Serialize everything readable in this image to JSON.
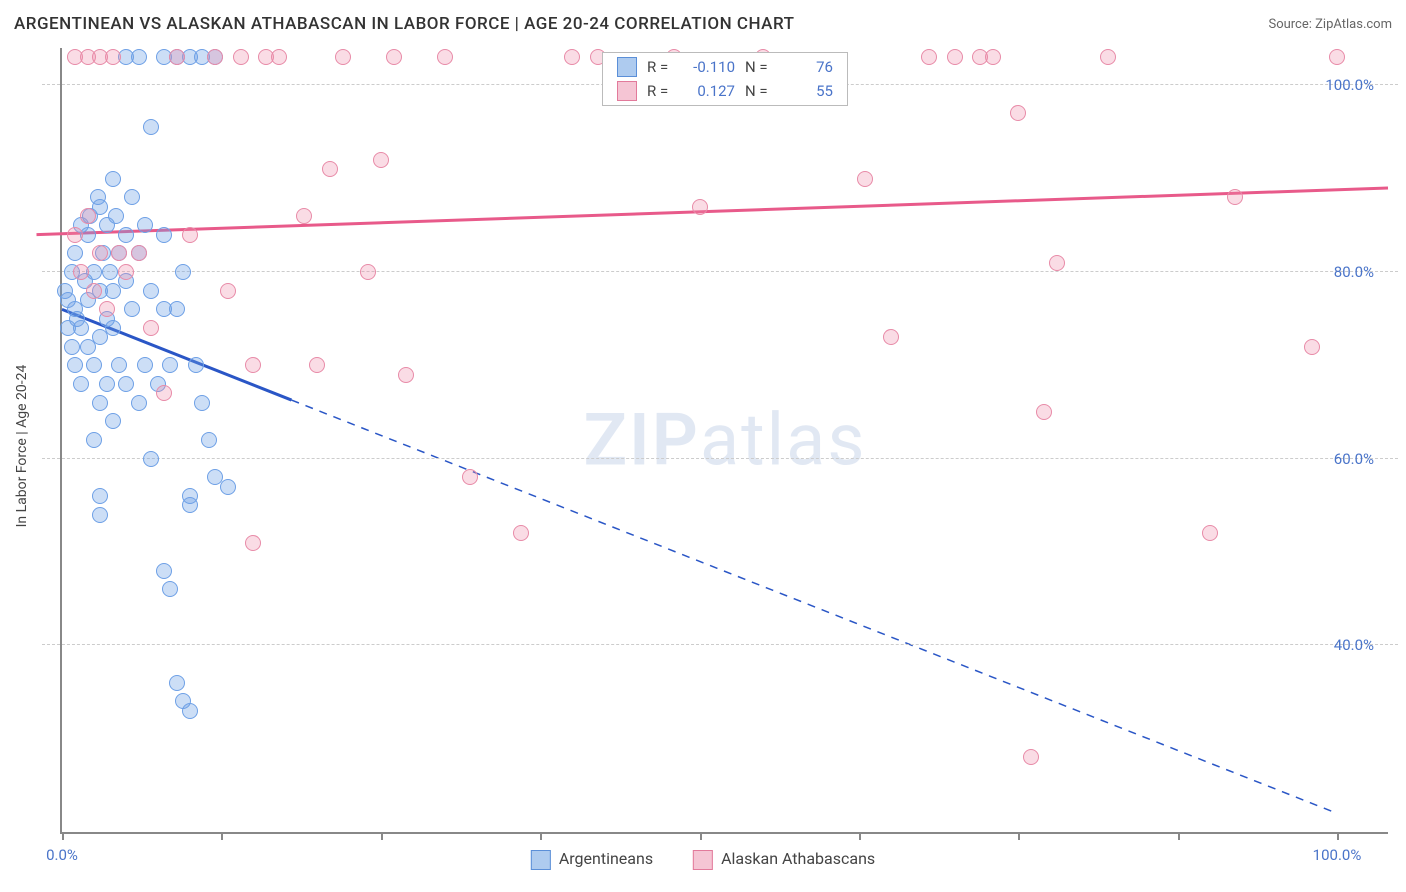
{
  "header": {
    "title": "ARGENTINEAN VS ALASKAN ATHABASCAN IN LABOR FORCE | AGE 20-24 CORRELATION CHART",
    "source_label": "Source: ",
    "source_name": "ZipAtlas.com"
  },
  "chart": {
    "type": "scatter-correlation",
    "y_axis_title": "In Labor Force | Age 20-24",
    "background_color": "#ffffff",
    "grid_color": "#cccccc",
    "axis_color": "#888888",
    "xlim": [
      0,
      104
    ],
    "ylim": [
      20,
      104
    ],
    "y_ticks": [
      40,
      60,
      80,
      100
    ],
    "y_tick_labels": [
      "40.0%",
      "60.0%",
      "80.0%",
      "100.0%"
    ],
    "y_tick_color": "#4a74c9",
    "x_ticks_minor": [
      0,
      12.5,
      25,
      37.5,
      50,
      62.5,
      75,
      87.5,
      100
    ],
    "x_tick_labels": [
      {
        "x": 0,
        "text": "0.0%"
      },
      {
        "x": 100,
        "text": "100.0%"
      }
    ],
    "x_tick_color": "#4a74c9",
    "marker_radius": 8,
    "marker_stroke_width": 1.5,
    "series": [
      {
        "name": "Argentineans",
        "fill_color": "rgba(110,160,230,0.35)",
        "stroke_color": "#6ea0e6",
        "swatch_fill": "#aecbef",
        "swatch_stroke": "#5b8fd8",
        "trend_color": "#2a56c6",
        "trend_width": 3,
        "trend_dash_after_x": 18,
        "trend_start": {
          "x": 0,
          "y": 76
        },
        "trend_end": {
          "x": 100,
          "y": 22
        },
        "R": "-0.110",
        "N": "76",
        "points": [
          [
            0.2,
            78
          ],
          [
            0.5,
            77
          ],
          [
            0.8,
            80
          ],
          [
            1,
            76
          ],
          [
            1,
            82
          ],
          [
            1.2,
            75
          ],
          [
            1.5,
            85
          ],
          [
            1.5,
            74
          ],
          [
            1.8,
            79
          ],
          [
            2,
            84
          ],
          [
            2,
            72
          ],
          [
            2,
            77
          ],
          [
            2.2,
            86
          ],
          [
            2.5,
            80
          ],
          [
            2.5,
            70
          ],
          [
            2.8,
            88
          ],
          [
            3,
            78
          ],
          [
            3,
            73
          ],
          [
            3,
            87
          ],
          [
            3.2,
            82
          ],
          [
            3.5,
            75
          ],
          [
            3.5,
            85
          ],
          [
            3.8,
            80
          ],
          [
            4,
            90
          ],
          [
            4,
            74
          ],
          [
            4,
            78
          ],
          [
            4.2,
            86
          ],
          [
            4.5,
            82
          ],
          [
            4.5,
            70
          ],
          [
            5,
            68
          ],
          [
            5,
            84
          ],
          [
            5,
            79
          ],
          [
            5,
            103
          ],
          [
            5.5,
            76
          ],
          [
            5.5,
            88
          ],
          [
            6,
            82
          ],
          [
            6,
            66
          ],
          [
            6,
            103
          ],
          [
            6.5,
            70
          ],
          [
            6.5,
            85
          ],
          [
            7,
            95.5
          ],
          [
            7,
            78
          ],
          [
            7.5,
            68
          ],
          [
            8,
            76
          ],
          [
            8,
            84
          ],
          [
            8,
            103
          ],
          [
            8.5,
            70
          ],
          [
            9,
            76
          ],
          [
            9,
            103
          ],
          [
            9.5,
            80
          ],
          [
            10,
            103
          ],
          [
            10,
            56
          ],
          [
            10,
            55
          ],
          [
            10.5,
            70
          ],
          [
            11,
            66
          ],
          [
            11,
            103
          ],
          [
            11.5,
            62
          ],
          [
            12,
            58
          ],
          [
            12,
            103
          ],
          [
            13,
            57
          ],
          [
            3,
            66
          ],
          [
            3.5,
            68
          ],
          [
            4,
            64
          ],
          [
            2.5,
            62
          ],
          [
            7,
            60
          ],
          [
            8,
            48
          ],
          [
            8.5,
            46
          ],
          [
            9,
            36
          ],
          [
            9.5,
            34
          ],
          [
            10,
            33
          ],
          [
            3,
            56
          ],
          [
            3,
            54
          ],
          [
            1,
            70
          ],
          [
            1.5,
            68
          ],
          [
            0.8,
            72
          ],
          [
            0.5,
            74
          ]
        ]
      },
      {
        "name": "Alaskan Athabascans",
        "fill_color": "rgba(240,140,170,0.30)",
        "stroke_color": "#e88ba8",
        "swatch_fill": "#f5c5d4",
        "swatch_stroke": "#e27a9b",
        "trend_color": "#e85a8a",
        "trend_width": 3,
        "trend_dash_after_x": 104,
        "trend_start": {
          "x": -2,
          "y": 84
        },
        "trend_end": {
          "x": 104,
          "y": 89
        },
        "R": "0.127",
        "N": "55",
        "points": [
          [
            1,
            103
          ],
          [
            1,
            84
          ],
          [
            1.5,
            80
          ],
          [
            2,
            86
          ],
          [
            2,
            103
          ],
          [
            2.5,
            78
          ],
          [
            3,
            82
          ],
          [
            3,
            103
          ],
          [
            3.5,
            76
          ],
          [
            4,
            103
          ],
          [
            4.5,
            82
          ],
          [
            5,
            80
          ],
          [
            6,
            82
          ],
          [
            7,
            74
          ],
          [
            8,
            67
          ],
          [
            9,
            103
          ],
          [
            10,
            84
          ],
          [
            12,
            103
          ],
          [
            13,
            78
          ],
          [
            14,
            103
          ],
          [
            15,
            70
          ],
          [
            15,
            51
          ],
          [
            16,
            103
          ],
          [
            17,
            103
          ],
          [
            19,
            86
          ],
          [
            20,
            70
          ],
          [
            21,
            91
          ],
          [
            22,
            103
          ],
          [
            24,
            80
          ],
          [
            25,
            92
          ],
          [
            26,
            103
          ],
          [
            27,
            69
          ],
          [
            30,
            103
          ],
          [
            32,
            58
          ],
          [
            36,
            52
          ],
          [
            40,
            103
          ],
          [
            42,
            103
          ],
          [
            48,
            103
          ],
          [
            50,
            87
          ],
          [
            55,
            103
          ],
          [
            63,
            90
          ],
          [
            65,
            73
          ],
          [
            68,
            103
          ],
          [
            70,
            103
          ],
          [
            72,
            103
          ],
          [
            73,
            103
          ],
          [
            75,
            97
          ],
          [
            76,
            28
          ],
          [
            77,
            65
          ],
          [
            78,
            81
          ],
          [
            82,
            103
          ],
          [
            90,
            52
          ],
          [
            92,
            88
          ],
          [
            98,
            72
          ],
          [
            100,
            103
          ]
        ]
      }
    ],
    "legend_top": {
      "R_label": "R =",
      "N_label": "N =",
      "value_color": "#4a74c9"
    },
    "bottom_legend_labels": [
      "Argentineans",
      "Alaskan Athabascans"
    ],
    "watermark": {
      "part1": "ZIP",
      "part2": "atlas",
      "color": "rgba(120,150,200,0.22)"
    }
  }
}
